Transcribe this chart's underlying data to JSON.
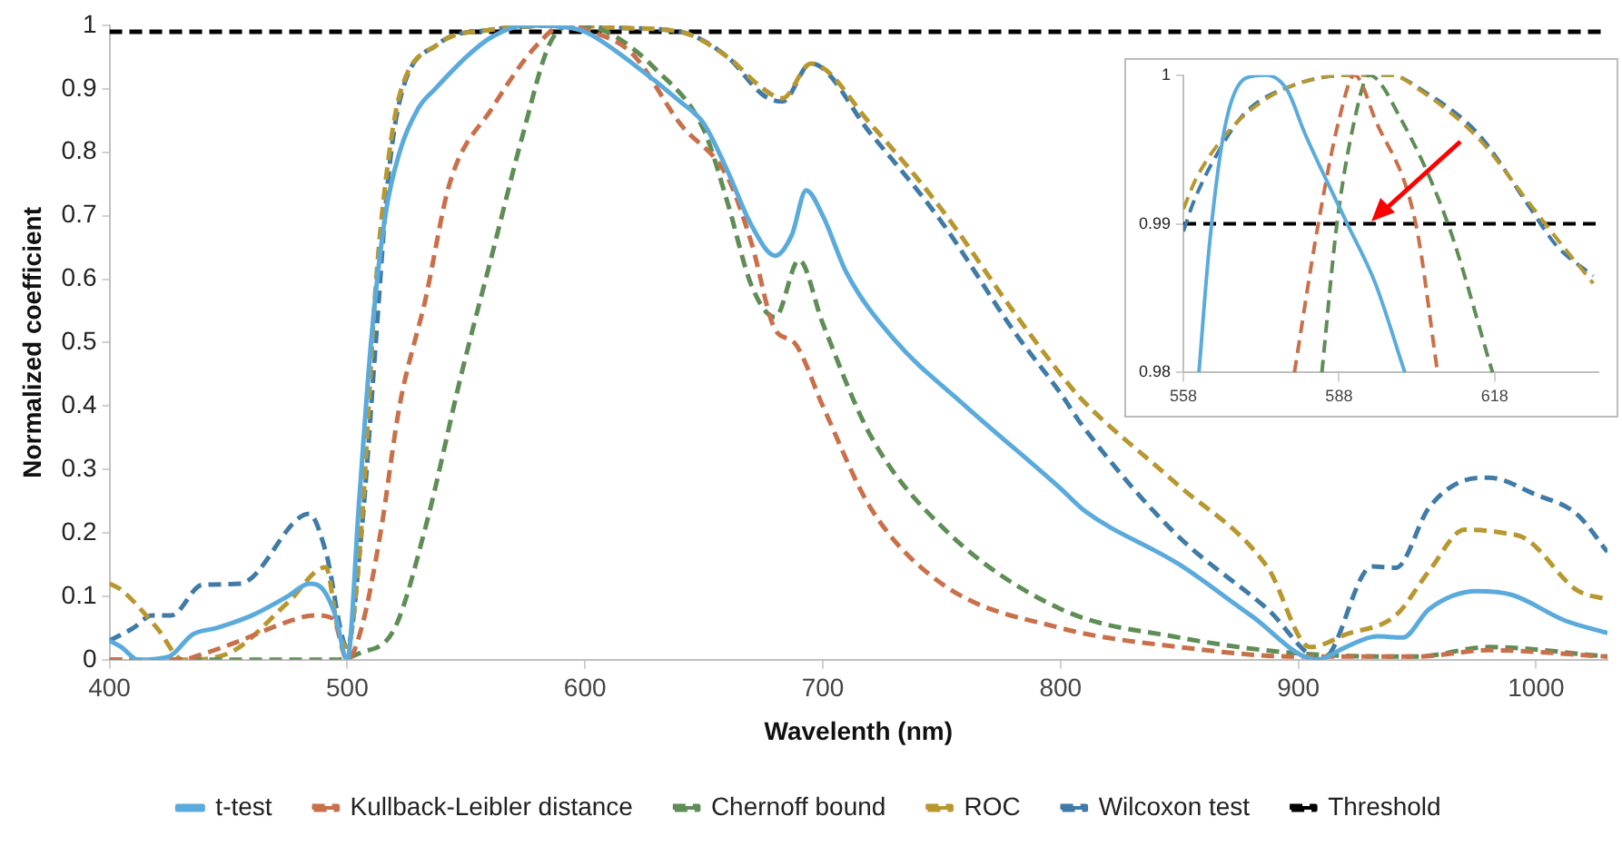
{
  "chart_data": [
    {
      "type": "line",
      "xlabel": "Wavelenth (nm)",
      "ylabel": "Normalized coefficient",
      "xlim": [
        400,
        1030
      ],
      "ylim": [
        0,
        1
      ],
      "xticks": [
        400,
        500,
        600,
        700,
        800,
        900,
        1000
      ],
      "yticks": [
        0,
        0.1,
        0.2,
        0.3,
        0.4,
        0.5,
        0.6,
        0.7,
        0.8,
        0.9,
        1
      ],
      "grid": false,
      "legend": "bottom",
      "marker": "none",
      "series": [
        {
          "name": "t-test",
          "color": "#5aabdc",
          "line_style": "solid",
          "x": [
            400,
            405,
            412,
            425,
            435,
            445,
            460,
            475,
            484,
            490,
            495,
            500,
            505,
            510,
            516,
            522,
            530,
            537,
            550,
            560,
            575,
            590,
            600,
            620,
            640,
            650,
            660,
            670,
            680,
            687,
            693,
            700,
            710,
            730,
            760,
            800,
            810,
            850,
            880,
            908,
            920,
            933,
            944,
            955,
            975,
            990,
            1012,
            1030
          ],
          "values": [
            0.03,
            0.02,
            0,
            0.005,
            0.04,
            0.05,
            0.07,
            0.1,
            0.12,
            0.11,
            0.07,
            0,
            0.25,
            0.5,
            0.7,
            0.8,
            0.87,
            0.9,
            0.95,
            0.98,
            1,
            0.998,
            0.99,
            0.94,
            0.88,
            0.845,
            0.77,
            0.685,
            0.637,
            0.67,
            0.74,
            0.7,
            0.61,
            0.505,
            0.4,
            0.27,
            0.235,
            0.15,
            0.07,
            0,
            0.02,
            0.037,
            0.035,
            0.08,
            0.108,
            0.102,
            0.062,
            0.042
          ]
        },
        {
          "name": "Kullback-Leibler distance",
          "color": "#c9704a",
          "line_style": "dashed",
          "x": [
            400,
            430,
            440,
            455,
            475,
            486,
            494,
            500,
            506,
            514,
            522,
            533,
            543,
            561,
            580,
            591,
            603,
            620,
            640,
            660,
            670,
            680,
            688,
            700,
            720,
            750,
            800,
            850,
            900,
            950,
            980,
            1030
          ],
          "values": [
            0,
            0,
            0.01,
            0.03,
            0.06,
            0.07,
            0.065,
            0,
            0.05,
            0.2,
            0.4,
            0.57,
            0.75,
            0.87,
            0.97,
            1,
            0.99,
            0.955,
            0.845,
            0.76,
            0.657,
            0.52,
            0.5,
            0.4,
            0.24,
            0.12,
            0.05,
            0.02,
            0.005,
            0.005,
            0.015,
            0.005
          ]
        },
        {
          "name": "Chernoff bound",
          "color": "#5e8d55",
          "line_style": "dashed",
          "x": [
            400,
            495,
            505,
            520,
            533,
            548,
            561,
            574,
            585,
            594,
            609,
            630,
            650,
            660,
            670,
            680,
            690,
            700,
            720,
            750,
            800,
            850,
            900,
            950,
            980,
            1030
          ],
          "values": [
            0,
            0,
            0.01,
            0.05,
            0.21,
            0.45,
            0.64,
            0.83,
            0.97,
            1,
            0.99,
            0.93,
            0.835,
            0.72,
            0.59,
            0.54,
            0.63,
            0.53,
            0.354,
            0.21,
            0.08,
            0.035,
            0.01,
            0.005,
            0.02,
            0.005
          ]
        },
        {
          "name": "ROC",
          "color": "#b8972f",
          "line_style": "dashed",
          "x": [
            400,
            405,
            420,
            431,
            450,
            475,
            491,
            496,
            500,
            506,
            512,
            517,
            522,
            538,
            560,
            580,
            595,
            615,
            640,
            660,
            675,
            683,
            695,
            720,
            750,
            780,
            800,
            809,
            848,
            887,
            905,
            920,
            941,
            955,
            970,
            986,
            996,
            1017,
            1030
          ],
          "values": [
            0.12,
            0.11,
            0.05,
            0,
            0.01,
            0.09,
            0.146,
            0.05,
            0.02,
            0.21,
            0.59,
            0.78,
            0.89,
            0.97,
            0.993,
            0.999,
            1,
            0.996,
            0.99,
            0.95,
            0.9,
            0.885,
            0.94,
            0.845,
            0.71,
            0.55,
            0.45,
            0.41,
            0.28,
            0.146,
            0.02,
            0.04,
            0.07,
            0.14,
            0.205,
            0.2,
            0.19,
            0.11,
            0.095
          ]
        },
        {
          "name": "Wilcoxon test",
          "color": "#3f7ba6",
          "line_style": "dashed",
          "x": [
            400,
            410,
            418,
            426,
            439,
            455,
            484,
            491,
            500,
            506,
            512,
            517,
            522,
            538,
            560,
            580,
            595,
            615,
            640,
            660,
            675,
            683,
            695,
            720,
            750,
            780,
            800,
            809,
            848,
            887,
            910,
            931,
            941,
            955,
            970,
            980,
            1000,
            1017,
            1030
          ],
          "values": [
            0.03,
            0.05,
            0.07,
            0.07,
            0.118,
            0.12,
            0.23,
            0.17,
            0.02,
            0.2,
            0.5,
            0.75,
            0.88,
            0.97,
            0.993,
            0.999,
            1,
            0.996,
            0.99,
            0.95,
            0.89,
            0.88,
            0.94,
            0.83,
            0.69,
            0.52,
            0.42,
            0.37,
            0.2,
            0.08,
            0,
            0.147,
            0.145,
            0.24,
            0.283,
            0.287,
            0.26,
            0.23,
            0.17
          ]
        },
        {
          "name": "Threshold",
          "color": "#000000",
          "line_style": "dashed",
          "x": [
            400,
            1030
          ],
          "values": [
            0.99,
            0.99
          ]
        }
      ]
    },
    {
      "type": "line",
      "xlim": [
        558,
        638
      ],
      "ylim": [
        0.98,
        1
      ],
      "xticks": [
        558,
        588,
        618
      ],
      "yticks": [
        0.98,
        0.99,
        1
      ],
      "grid": false,
      "marker": "none",
      "series": [
        {
          "color": "#5aabdc",
          "line_style": "solid",
          "x": [
            561,
            563,
            566,
            570,
            574,
            578,
            581.4,
            589.6,
            595,
            600.7
          ],
          "values": [
            0.98,
            0.9885,
            0.9965,
            0.9998,
            1,
            0.999,
            0.9961,
            0.99,
            0.986,
            0.98
          ]
        },
        {
          "color": "#c9704a",
          "line_style": "dashed",
          "x": [
            579.4,
            584,
            588,
            591,
            595,
            602.8,
            607
          ],
          "values": [
            0.98,
            0.99,
            0.997,
            1,
            0.997,
            0.99,
            0.98
          ]
        },
        {
          "color": "#5e8d55",
          "line_style": "dashed",
          "x": [
            584.7,
            587.6,
            591,
            593.8,
            600,
            609,
            617.6
          ],
          "values": [
            0.98,
            0.99,
            0.997,
            1,
            0.997,
            0.99,
            0.98
          ]
        },
        {
          "color": "#b8972f",
          "line_style": "dashed",
          "x": [
            558,
            560.4,
            565,
            570.4,
            579,
            590,
            598,
            604,
            615,
            624,
            630,
            637
          ],
          "values": [
            0.991,
            0.993,
            0.9955,
            0.9975,
            0.9993,
            1,
            1,
            0.9989,
            0.9957,
            0.9917,
            0.989,
            0.986
          ]
        },
        {
          "color": "#3f7ba6",
          "line_style": "dashed",
          "x": [
            558,
            560,
            565,
            570,
            579,
            590,
            598,
            604,
            615,
            624,
            630,
            637
          ],
          "values": [
            0.9895,
            0.9915,
            0.995,
            0.9975,
            0.9993,
            1,
            1,
            0.999,
            0.996,
            0.9915,
            0.9885,
            0.9865
          ]
        },
        {
          "color": "#000000",
          "line_style": "dashed",
          "x": [
            558,
            638
          ],
          "values": [
            0.99,
            0.99
          ]
        }
      ]
    }
  ]
}
